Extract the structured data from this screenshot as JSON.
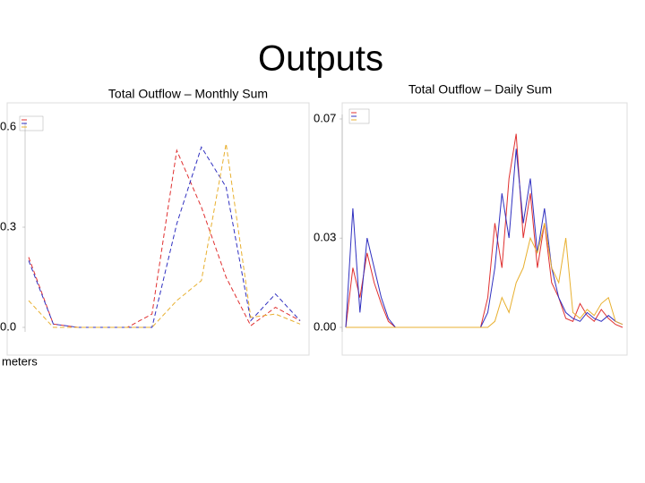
{
  "title": "Outputs",
  "chart_data": [
    {
      "type": "line",
      "title": "Total Outflow – Monthly Sum",
      "ylabel": "meters",
      "categories": [
        null,
        null,
        null,
        null,
        null,
        null,
        null,
        null,
        null,
        null,
        null,
        null
      ],
      "ylim": [
        0,
        0.6
      ],
      "yticks": [
        {
          "value": 0.6,
          "label": "0.6"
        },
        {
          "value": 0.3,
          "label": "0.3"
        },
        {
          "value": 0,
          "label": "0.0"
        }
      ],
      "series": [
        {
          "color": "#e03030",
          "values": [
            0.21,
            0.01,
            0,
            0,
            0,
            0.04,
            0.53,
            0.36,
            0.15,
            0.005,
            0.06,
            0.02
          ]
        },
        {
          "color": "#3030c0",
          "values": [
            0.2,
            0.01,
            0,
            0,
            0,
            0,
            0.31,
            0.54,
            0.42,
            0.02,
            0.1,
            0.02
          ]
        },
        {
          "color": "#e8b030",
          "values": [
            0.08,
            0,
            0,
            0,
            0,
            0,
            0.08,
            0.14,
            0.55,
            0.03,
            0.04,
            0.01
          ]
        }
      ]
    },
    {
      "type": "line",
      "title": "Total Outflow – Daily Sum",
      "categories": [
        null,
        null,
        null,
        null,
        null,
        null,
        null,
        null,
        null,
        null,
        null,
        null,
        null,
        null,
        null,
        null,
        null,
        null,
        null,
        null,
        null,
        null,
        null,
        null,
        null,
        null,
        null,
        null,
        null,
        null,
        null,
        null,
        null,
        null,
        null,
        null,
        null,
        null,
        null,
        null
      ],
      "ylim": [
        0,
        0.07
      ],
      "yticks": [
        0.07,
        0.03,
        {
          "value": 0,
          "label": "0.00"
        }
      ],
      "series": [
        {
          "color": "#e03030",
          "values": [
            0,
            0.02,
            0.01,
            0.025,
            0.015,
            0.008,
            0.002,
            0,
            0,
            0,
            0,
            0,
            0,
            0,
            0,
            0,
            0,
            0,
            0,
            0,
            0.01,
            0.035,
            0.02,
            0.05,
            0.065,
            0.03,
            0.045,
            0.02,
            0.035,
            0.015,
            0.01,
            0.003,
            0.002,
            0.008,
            0.004,
            0.002,
            0.006,
            0.003,
            0.001,
            0
          ]
        },
        {
          "color": "#3030c0",
          "values": [
            0,
            0.04,
            0.005,
            0.03,
            0.02,
            0.01,
            0.003,
            0,
            0,
            0,
            0,
            0,
            0,
            0,
            0,
            0,
            0,
            0,
            0,
            0,
            0.005,
            0.02,
            0.045,
            0.03,
            0.06,
            0.035,
            0.05,
            0.025,
            0.04,
            0.02,
            0.01,
            0.005,
            0.003,
            0.002,
            0.005,
            0.003,
            0.002,
            0.004,
            0.002,
            0.001
          ]
        },
        {
          "color": "#e8b030",
          "values": [
            0,
            0,
            0,
            0,
            0,
            0,
            0,
            0,
            0,
            0,
            0,
            0,
            0,
            0,
            0,
            0,
            0,
            0,
            0,
            0,
            0,
            0.002,
            0.01,
            0.005,
            0.015,
            0.02,
            0.03,
            0.025,
            0.035,
            0.02,
            0.015,
            0.03,
            0.005,
            0.003,
            0.006,
            0.004,
            0.008,
            0.01,
            0.002,
            0.001
          ]
        }
      ]
    }
  ]
}
